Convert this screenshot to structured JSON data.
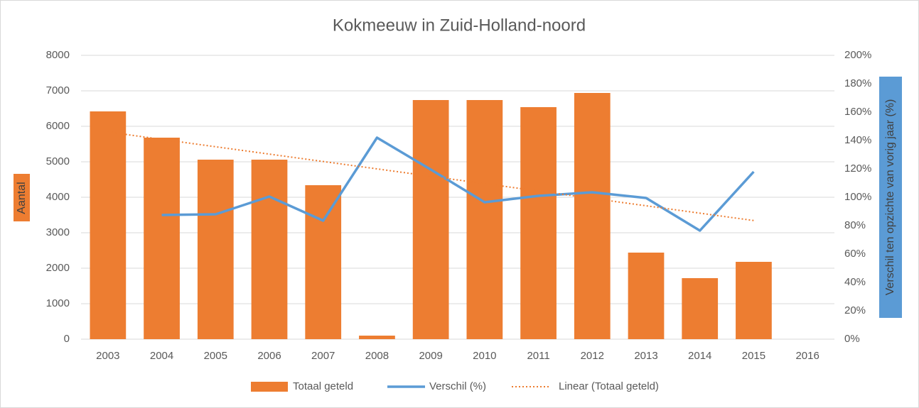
{
  "chart_data": {
    "type": "combo",
    "title": "Kokmeeuw  in Zuid-Holland-noord",
    "categories": [
      "2003",
      "2004",
      "2005",
      "2006",
      "2007",
      "2008",
      "2009",
      "2010",
      "2011",
      "2012",
      "2013",
      "2014",
      "2015",
      "2016"
    ],
    "y_label": "Aantal",
    "y2_label": "Verschil ten opzichte van vorig jaar (%)",
    "ylim": [
      0,
      8000
    ],
    "yticks": [
      0,
      1000,
      2000,
      3000,
      4000,
      5000,
      6000,
      7000,
      8000
    ],
    "y2lim": [
      0,
      200
    ],
    "y2ticks": [
      {
        "value": 0,
        "label": "0%"
      },
      {
        "value": 20,
        "label": "20%"
      },
      {
        "value": 40,
        "label": "40%"
      },
      {
        "value": 60,
        "label": "60%"
      },
      {
        "value": 80,
        "label": "80%"
      },
      {
        "value": 100,
        "label": "100%"
      },
      {
        "value": 120,
        "label": "120%"
      },
      {
        "value": 140,
        "label": "140%"
      },
      {
        "value": 160,
        "label": "160%"
      },
      {
        "value": 180,
        "label": "180%"
      },
      {
        "value": 200,
        "label": "200%"
      }
    ],
    "grid": true,
    "legend": "bottom",
    "series": [
      {
        "name": "Totaal geteld",
        "type": "bar",
        "color": "#ed7d31",
        "values": [
          6420,
          5680,
          5060,
          5060,
          4340,
          100,
          6740,
          6740,
          6540,
          6940,
          2440,
          1720,
          2180,
          null
        ]
      },
      {
        "name": "Verschil (%)",
        "type": "line",
        "axis": "y2",
        "color": "#5b9bd5",
        "values": [
          null,
          87.5,
          88,
          100.5,
          83.5,
          142,
          119.5,
          96.5,
          101,
          103.5,
          99.5,
          76.5,
          118,
          null
        ]
      },
      {
        "name": "Linear (Totaal geteld)",
        "type": "line",
        "style": "dotted",
        "color": "#ed7d31",
        "values": [
          5840,
          5632,
          5424,
          5216,
          5008,
          4800,
          4592,
          4384,
          4176,
          3968,
          3760,
          3552,
          3344,
          null
        ]
      }
    ]
  }
}
